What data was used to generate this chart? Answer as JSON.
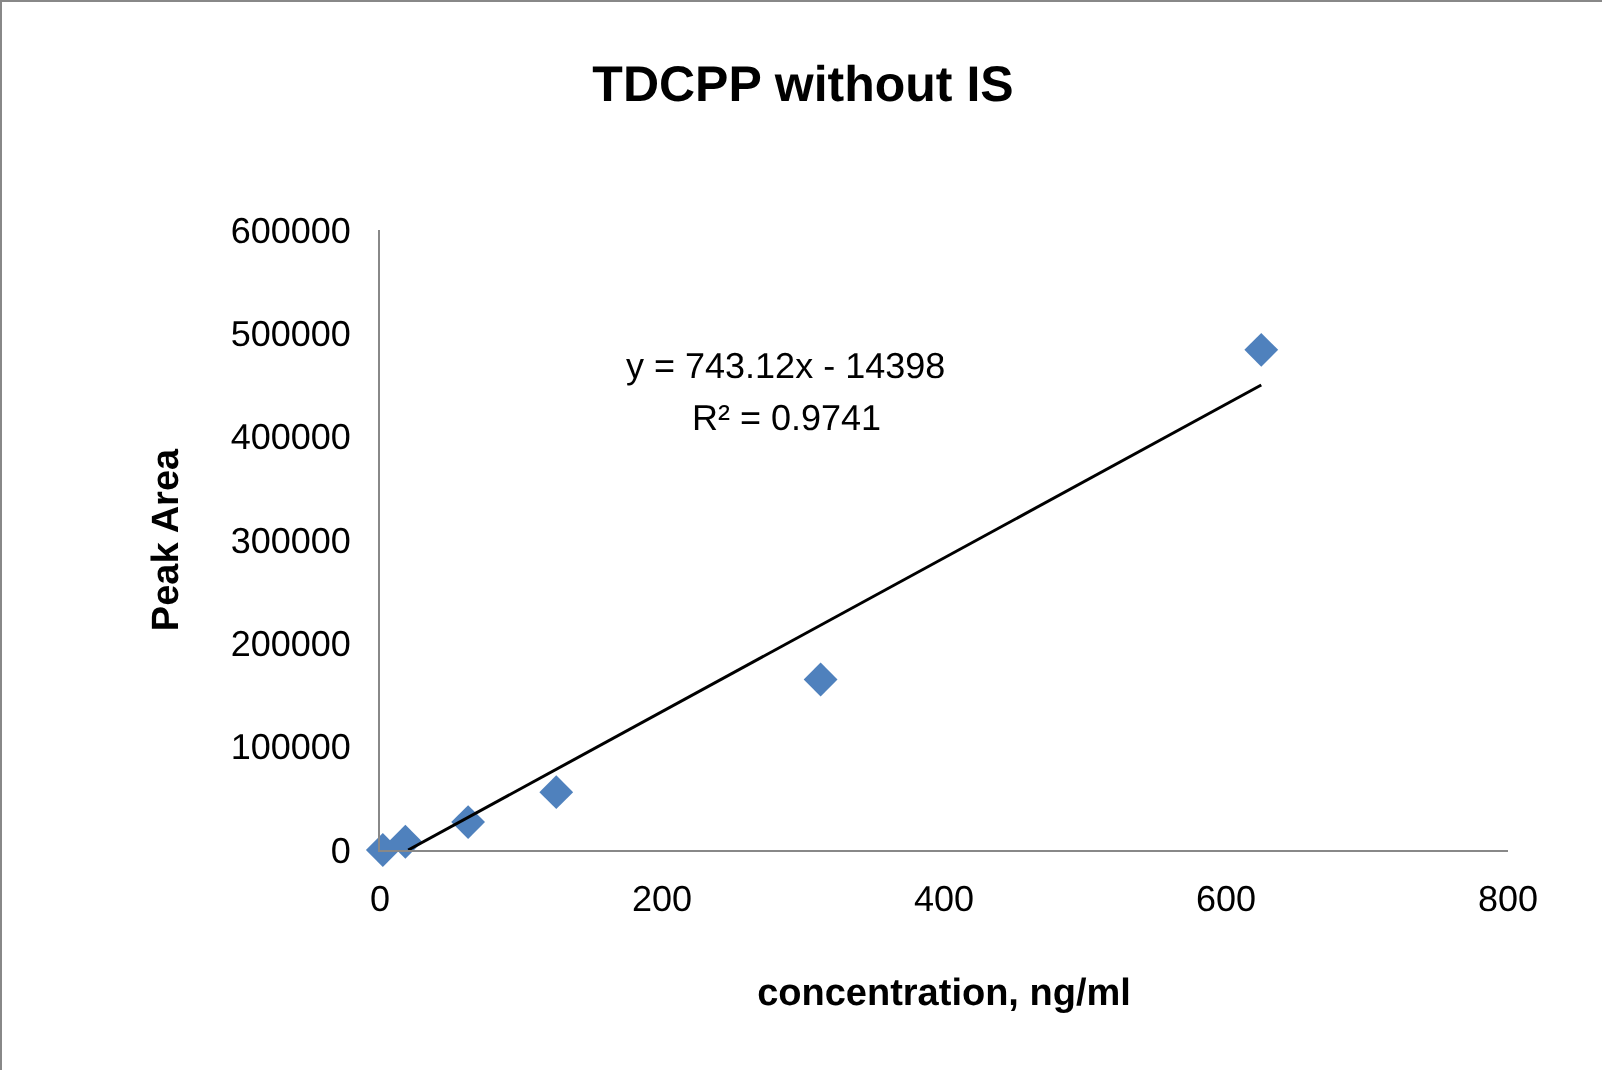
{
  "chart_data": {
    "type": "scatter",
    "title": "TDCPP without IS",
    "xlabel": "concentration, ng/ml",
    "ylabel": "Peak Area",
    "xlim": [
      0,
      800
    ],
    "xticks": [
      0,
      200,
      400,
      600,
      800
    ],
    "ylim": [
      0,
      600000
    ],
    "yticks": [
      0,
      100000,
      200000,
      300000,
      400000,
      500000,
      600000
    ],
    "grid": false,
    "marker": "diamond",
    "series": [
      {
        "color": "#4f81bd",
        "x": [
          2,
          18,
          62.5,
          125,
          312.5,
          625
        ],
        "values": [
          0,
          8000,
          27000,
          56000,
          165000,
          484000
        ]
      },
      {
        "type": "line",
        "color": "#000000",
        "line_style": "solid",
        "marker": "none",
        "x": [
          20,
          625
        ],
        "values": [
          0,
          450000
        ]
      }
    ],
    "annotations": [
      "y = 743.12x - 14398",
      "R² = 0.9741"
    ]
  }
}
